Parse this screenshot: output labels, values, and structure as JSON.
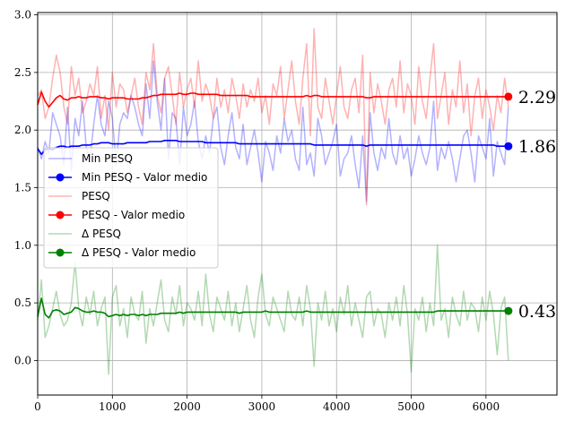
{
  "chart_data": {
    "type": "line",
    "xlim": [
      0,
      6950
    ],
    "ylim": [
      -0.3,
      3.02
    ],
    "grid": true,
    "legend_position": "center-left",
    "x_ticks": [
      0,
      1000,
      2000,
      3000,
      4000,
      5000,
      6000
    ],
    "y_ticks": [
      0.0,
      0.5,
      1.0,
      1.5,
      2.0,
      2.5,
      3.0
    ],
    "x_tick_labels": [
      "0",
      "1000",
      "2000",
      "3000",
      "4000",
      "5000",
      "6000"
    ],
    "y_tick_labels": [
      "0.0",
      "0.5",
      "1.0",
      "1.5",
      "2.0",
      "2.5",
      "3.0"
    ],
    "x": [
      0,
      50,
      100,
      150,
      200,
      250,
      300,
      350,
      400,
      450,
      500,
      550,
      600,
      650,
      700,
      750,
      800,
      850,
      900,
      950,
      1000,
      1050,
      1100,
      1150,
      1200,
      1250,
      1300,
      1350,
      1400,
      1450,
      1500,
      1550,
      1600,
      1650,
      1700,
      1750,
      1800,
      1850,
      1900,
      1950,
      2000,
      2050,
      2100,
      2150,
      2200,
      2250,
      2300,
      2350,
      2400,
      2450,
      2500,
      2550,
      2600,
      2650,
      2700,
      2750,
      2800,
      2850,
      2900,
      2950,
      3000,
      3050,
      3100,
      3150,
      3200,
      3250,
      3300,
      3350,
      3400,
      3450,
      3500,
      3550,
      3600,
      3650,
      3700,
      3750,
      3800,
      3850,
      3900,
      3950,
      4000,
      4050,
      4100,
      4150,
      4200,
      4250,
      4300,
      4350,
      4400,
      4450,
      4500,
      4550,
      4600,
      4650,
      4700,
      4750,
      4800,
      4850,
      4900,
      4950,
      5000,
      5050,
      5100,
      5150,
      5200,
      5250,
      5300,
      5350,
      5400,
      5450,
      5500,
      5550,
      5600,
      5650,
      5700,
      5750,
      5800,
      5850,
      5900,
      5950,
      6000,
      6050,
      6100,
      6150,
      6200,
      6250,
      6300
    ],
    "series": [
      {
        "name": "Min PESQ",
        "color": "#0000ff",
        "opacity": 0.3,
        "values": [
          1.85,
          1.75,
          1.9,
          1.8,
          2.15,
          2.05,
          1.95,
          1.7,
          2.2,
          1.65,
          2.1,
          1.95,
          2.25,
          1.85,
          1.75,
          2.05,
          2.3,
          2.05,
          1.95,
          2.25,
          2.1,
          1.7,
          2.05,
          2.15,
          2.1,
          2.3,
          2.2,
          2.05,
          1.95,
          2.4,
          2.1,
          2.6,
          2.25,
          2.0,
          2.45,
          1.75,
          2.15,
          2.1,
          1.7,
          2.2,
          1.95,
          2.05,
          2.25,
          1.9,
          1.75,
          1.95,
          1.8,
          2.1,
          2.2,
          1.85,
          1.7,
          1.95,
          2.15,
          1.85,
          1.75,
          2.05,
          1.7,
          1.85,
          2.0,
          1.8,
          1.55,
          1.9,
          1.8,
          1.65,
          1.95,
          1.8,
          2.1,
          1.9,
          2.0,
          1.75,
          1.65,
          2.2,
          1.7,
          1.8,
          1.6,
          2.1,
          1.95,
          1.7,
          1.8,
          1.9,
          2.05,
          1.6,
          1.75,
          1.8,
          1.95,
          1.7,
          1.5,
          1.95,
          1.38,
          2.15,
          1.8,
          1.65,
          1.85,
          1.75,
          2.1,
          1.8,
          1.7,
          1.95,
          1.75,
          1.85,
          1.6,
          1.75,
          1.95,
          1.8,
          1.7,
          1.85,
          2.25,
          1.65,
          1.85,
          1.75,
          1.9,
          1.75,
          1.55,
          1.75,
          1.95,
          2.0,
          1.8,
          1.55,
          1.95,
          1.85,
          1.75,
          2.1,
          1.6,
          1.9,
          1.8,
          1.7,
          2.2
        ],
        "end_label": ""
      },
      {
        "name": "Min PESQ - Valor medio",
        "color": "#0000ff",
        "opacity": 1,
        "values": [
          1.84,
          1.79,
          1.83,
          1.84,
          1.83,
          1.85,
          1.86,
          1.86,
          1.85,
          1.86,
          1.86,
          1.86,
          1.87,
          1.87,
          1.87,
          1.88,
          1.88,
          1.89,
          1.89,
          1.89,
          1.88,
          1.88,
          1.88,
          1.88,
          1.89,
          1.89,
          1.89,
          1.89,
          1.89,
          1.89,
          1.9,
          1.9,
          1.9,
          1.9,
          1.91,
          1.91,
          1.91,
          1.91,
          1.9,
          1.9,
          1.9,
          1.9,
          1.9,
          1.9,
          1.9,
          1.89,
          1.89,
          1.89,
          1.89,
          1.89,
          1.89,
          1.89,
          1.89,
          1.89,
          1.88,
          1.88,
          1.88,
          1.88,
          1.88,
          1.88,
          1.88,
          1.88,
          1.88,
          1.88,
          1.88,
          1.88,
          1.88,
          1.88,
          1.88,
          1.88,
          1.88,
          1.88,
          1.88,
          1.88,
          1.87,
          1.87,
          1.87,
          1.87,
          1.87,
          1.87,
          1.87,
          1.87,
          1.87,
          1.87,
          1.87,
          1.87,
          1.87,
          1.87,
          1.86,
          1.87,
          1.87,
          1.87,
          1.87,
          1.87,
          1.87,
          1.87,
          1.87,
          1.87,
          1.87,
          1.87,
          1.87,
          1.87,
          1.87,
          1.87,
          1.87,
          1.87,
          1.87,
          1.87,
          1.87,
          1.87,
          1.87,
          1.87,
          1.87,
          1.87,
          1.87,
          1.87,
          1.87,
          1.87,
          1.87,
          1.87,
          1.87,
          1.87,
          1.87,
          1.86,
          1.86,
          1.86,
          1.86
        ],
        "end_label": "1.86"
      },
      {
        "name": "PESQ",
        "color": "#ff0000",
        "opacity": 0.3,
        "values": [
          2.3,
          2.35,
          2.1,
          2.2,
          2.45,
          2.65,
          2.5,
          2.2,
          2.05,
          2.55,
          2.3,
          2.45,
          2.15,
          2.25,
          2.4,
          2.3,
          2.55,
          2.1,
          2.3,
          2.0,
          2.5,
          2.2,
          2.4,
          2.35,
          2.15,
          2.3,
          2.45,
          2.2,
          2.05,
          2.5,
          2.35,
          2.75,
          2.3,
          2.15,
          2.45,
          2.55,
          2.3,
          2.05,
          2.5,
          2.2,
          2.35,
          2.45,
          2.2,
          2.6,
          2.25,
          2.4,
          2.3,
          2.1,
          2.45,
          2.2,
          2.35,
          2.15,
          2.45,
          2.3,
          2.1,
          2.4,
          2.2,
          2.35,
          2.25,
          2.45,
          2.15,
          2.3,
          2.05,
          2.4,
          2.3,
          2.55,
          2.1,
          2.35,
          2.6,
          2.25,
          2.05,
          2.45,
          2.75,
          1.95,
          2.88,
          2.2,
          2.1,
          2.45,
          2.25,
          2.05,
          2.3,
          2.55,
          2.2,
          2.1,
          2.35,
          2.45,
          2.15,
          2.65,
          1.35,
          2.5,
          2.15,
          2.4,
          2.25,
          2.05,
          2.35,
          2.45,
          2.2,
          2.6,
          2.15,
          2.4,
          2.3,
          2.05,
          2.55,
          2.25,
          2.1,
          2.45,
          2.75,
          2.1,
          2.3,
          2.5,
          2.05,
          2.35,
          2.2,
          2.6,
          2.15,
          2.4,
          1.95,
          2.3,
          2.45,
          2.1,
          2.35,
          2.2,
          2.0,
          2.3,
          2.15,
          2.45,
          2.2
        ],
        "end_label": ""
      },
      {
        "name": "PESQ - Valor medio",
        "color": "#ff0000",
        "opacity": 1,
        "values": [
          2.22,
          2.33,
          2.25,
          2.2,
          2.24,
          2.28,
          2.3,
          2.27,
          2.26,
          2.28,
          2.28,
          2.29,
          2.28,
          2.28,
          2.29,
          2.29,
          2.29,
          2.28,
          2.28,
          2.27,
          2.28,
          2.28,
          2.28,
          2.28,
          2.27,
          2.27,
          2.27,
          2.27,
          2.28,
          2.28,
          2.29,
          2.3,
          2.3,
          2.31,
          2.31,
          2.31,
          2.31,
          2.31,
          2.32,
          2.31,
          2.31,
          2.32,
          2.32,
          2.31,
          2.31,
          2.31,
          2.31,
          2.31,
          2.31,
          2.3,
          2.3,
          2.3,
          2.3,
          2.3,
          2.3,
          2.3,
          2.3,
          2.29,
          2.29,
          2.29,
          2.29,
          2.29,
          2.29,
          2.29,
          2.29,
          2.29,
          2.29,
          2.29,
          2.29,
          2.29,
          2.29,
          2.29,
          2.3,
          2.29,
          2.3,
          2.3,
          2.29,
          2.29,
          2.29,
          2.29,
          2.29,
          2.29,
          2.29,
          2.29,
          2.29,
          2.29,
          2.29,
          2.29,
          2.28,
          2.28,
          2.29,
          2.29,
          2.29,
          2.29,
          2.29,
          2.29,
          2.29,
          2.29,
          2.29,
          2.29,
          2.29,
          2.29,
          2.29,
          2.29,
          2.29,
          2.29,
          2.29,
          2.29,
          2.29,
          2.29,
          2.29,
          2.29,
          2.29,
          2.29,
          2.29,
          2.29,
          2.29,
          2.29,
          2.29,
          2.29,
          2.29,
          2.29,
          2.29,
          2.29,
          2.29,
          2.29,
          2.29
        ],
        "end_label": "2.29"
      },
      {
        "name": "Δ PESQ",
        "color": "#008000",
        "opacity": 0.3,
        "values": [
          0.35,
          0.7,
          0.2,
          0.3,
          0.45,
          0.6,
          0.4,
          0.3,
          0.35,
          0.5,
          0.85,
          0.45,
          0.3,
          0.55,
          0.4,
          0.6,
          0.3,
          0.45,
          0.55,
          -0.12,
          0.55,
          0.65,
          0.3,
          0.45,
          0.2,
          0.55,
          0.4,
          0.35,
          0.6,
          0.15,
          0.45,
          0.3,
          0.5,
          0.7,
          0.35,
          0.25,
          0.55,
          0.4,
          0.65,
          0.3,
          0.5,
          0.45,
          0.35,
          0.6,
          0.3,
          0.75,
          0.4,
          0.25,
          0.55,
          0.45,
          0.35,
          0.6,
          0.3,
          0.5,
          0.25,
          0.45,
          0.65,
          0.35,
          0.2,
          0.55,
          0.75,
          0.4,
          0.3,
          0.55,
          0.45,
          0.35,
          0.25,
          0.6,
          0.4,
          0.35,
          0.55,
          0.3,
          0.65,
          0.45,
          -0.05,
          0.5,
          0.35,
          0.6,
          0.3,
          0.45,
          0.25,
          0.55,
          0.4,
          0.65,
          0.3,
          0.5,
          0.35,
          0.2,
          0.55,
          0.6,
          0.3,
          0.45,
          0.4,
          0.2,
          0.5,
          0.35,
          0.55,
          0.3,
          0.65,
          0.4,
          -0.1,
          0.45,
          0.35,
          0.55,
          0.25,
          0.5,
          0.3,
          1.0,
          0.35,
          0.45,
          0.2,
          0.55,
          0.4,
          0.3,
          0.6,
          0.35,
          0.5,
          0.45,
          0.25,
          0.55,
          0.35,
          0.6,
          0.4,
          0.05,
          0.45,
          0.55,
          0.0
        ],
        "end_label": ""
      },
      {
        "name": "Δ PESQ - Valor medio",
        "color": "#008000",
        "opacity": 1,
        "values": [
          0.38,
          0.54,
          0.4,
          0.37,
          0.43,
          0.44,
          0.43,
          0.4,
          0.41,
          0.42,
          0.46,
          0.45,
          0.43,
          0.42,
          0.42,
          0.43,
          0.42,
          0.42,
          0.41,
          0.38,
          0.39,
          0.4,
          0.39,
          0.4,
          0.39,
          0.4,
          0.4,
          0.39,
          0.4,
          0.39,
          0.4,
          0.4,
          0.4,
          0.41,
          0.41,
          0.41,
          0.41,
          0.41,
          0.42,
          0.41,
          0.42,
          0.42,
          0.42,
          0.42,
          0.42,
          0.42,
          0.42,
          0.42,
          0.42,
          0.42,
          0.42,
          0.42,
          0.42,
          0.42,
          0.41,
          0.42,
          0.42,
          0.42,
          0.42,
          0.42,
          0.42,
          0.43,
          0.42,
          0.42,
          0.42,
          0.42,
          0.42,
          0.42,
          0.42,
          0.42,
          0.42,
          0.42,
          0.43,
          0.42,
          0.42,
          0.42,
          0.42,
          0.42,
          0.42,
          0.42,
          0.42,
          0.42,
          0.42,
          0.42,
          0.42,
          0.42,
          0.42,
          0.42,
          0.42,
          0.42,
          0.42,
          0.42,
          0.42,
          0.42,
          0.42,
          0.42,
          0.42,
          0.42,
          0.42,
          0.42,
          0.42,
          0.42,
          0.42,
          0.42,
          0.42,
          0.42,
          0.42,
          0.43,
          0.43,
          0.43,
          0.43,
          0.43,
          0.43,
          0.43,
          0.43,
          0.43,
          0.43,
          0.43,
          0.43,
          0.43,
          0.43,
          0.43,
          0.43,
          0.43,
          0.43,
          0.43,
          0.43
        ],
        "end_label": "0.43"
      }
    ]
  }
}
